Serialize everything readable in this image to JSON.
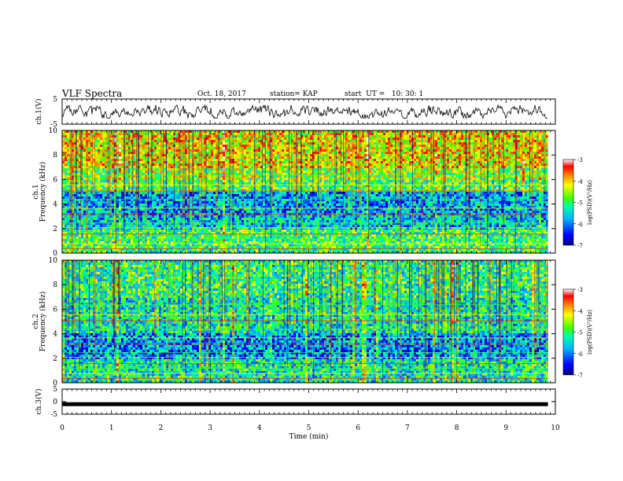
{
  "header": {
    "title": "VLF Spectra",
    "date": "Oct. 18, 2017",
    "station": "station= KAP",
    "start": "start  UT =   10: 30: 1"
  },
  "chart_data": [
    {
      "type": "line",
      "panel": "ch1-waveform",
      "ylabel": "ch.1(V)",
      "ylim": [
        -5,
        5
      ],
      "yticks": [
        "5",
        "-5"
      ],
      "x_range_min": [
        0,
        9.85
      ],
      "description_values": "noisy waveform roughly within -2.5 to 2.5 V",
      "color": "#000000"
    },
    {
      "type": "heatmap",
      "panel": "ch1-spectrogram",
      "ylabel": "ch.1\nFrequency (kHz)",
      "ylim": [
        0,
        10
      ],
      "yticks": [
        "0",
        "2",
        "4",
        "6",
        "8",
        "10"
      ],
      "x_range_min": [
        0,
        9.85
      ],
      "intensity_by_freq_khz": [
        {
          "freq_range": [
            0,
            1
          ],
          "log_psd": -5.0
        },
        {
          "freq_range": [
            1,
            2
          ],
          "log_psd": -5.0
        },
        {
          "freq_range": [
            2,
            3
          ],
          "log_psd": -5.6
        },
        {
          "freq_range": [
            3,
            5
          ],
          "log_psd": -5.8
        },
        {
          "freq_range": [
            5,
            6
          ],
          "log_psd": -4.9
        },
        {
          "freq_range": [
            6,
            7
          ],
          "log_psd": -4.6
        },
        {
          "freq_range": [
            7,
            10
          ],
          "log_psd": -4.2
        }
      ],
      "colorbar": {
        "label": "log(PSD)(V²/Hz)",
        "range": [
          -7,
          -3
        ],
        "ticks": [
          "-3",
          "-4",
          "-5",
          "-6",
          "-7"
        ]
      }
    },
    {
      "type": "heatmap",
      "panel": "ch2-spectrogram",
      "ylabel": "ch.2\nFrequency (kHz)",
      "ylim": [
        0,
        10
      ],
      "yticks": [
        "0",
        "2",
        "4",
        "6",
        "8",
        "10"
      ],
      "x_range_min": [
        0,
        9.85
      ],
      "intensity_by_freq_khz": [
        {
          "freq_range": [
            0,
            2
          ],
          "log_psd": -5.3
        },
        {
          "freq_range": [
            2,
            4
          ],
          "log_psd": -5.9
        },
        {
          "freq_range": [
            4,
            7
          ],
          "log_psd": -5.3
        },
        {
          "freq_range": [
            7,
            10
          ],
          "log_psd": -5.1
        }
      ],
      "colorbar": {
        "label": "log(PSD)(V²/Hz)",
        "range": [
          -7,
          -3
        ],
        "ticks": [
          "-3",
          "-4",
          "-5",
          "-6",
          "-7"
        ]
      }
    },
    {
      "type": "line",
      "panel": "ch3-waveform",
      "ylabel": "ch.3(V)",
      "xlabel": "Time  (min)",
      "ylim": [
        -5,
        5
      ],
      "yticks": [
        "5",
        "0",
        "-5"
      ],
      "xlim": [
        0,
        10
      ],
      "xticks": [
        "0",
        "1",
        "2",
        "3",
        "4",
        "5",
        "6",
        "7",
        "8",
        "9",
        "10"
      ],
      "x": [
        0,
        9.85
      ],
      "values": [
        -1,
        -1
      ],
      "color": "#000000"
    }
  ]
}
